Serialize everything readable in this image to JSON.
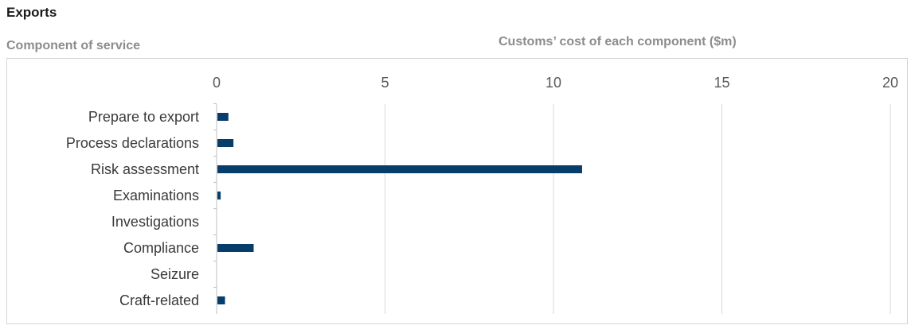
{
  "header": {
    "title": "Exports",
    "left_label": "Component of service",
    "right_label": "Customs’ cost of each component ($m)"
  },
  "chart_data": {
    "type": "bar",
    "orientation": "horizontal",
    "categories": [
      "Prepare to export",
      "Process declarations",
      "Risk assessment",
      "Examinations",
      "Investigations",
      "Compliance",
      "Seizure",
      "Craft-related"
    ],
    "values": [
      0.35,
      0.5,
      10.85,
      0.12,
      0,
      1.1,
      0,
      0.25
    ],
    "xlabel": "Customs’ cost of each component ($m)",
    "ylabel": "Component of service",
    "xlim": [
      0,
      20
    ],
    "xticks": [
      0,
      5,
      10,
      15,
      20
    ],
    "grid": true,
    "colors": {
      "bar": "#063d6b",
      "grid": "#d9d9d9",
      "axis": "#bfbfbf"
    }
  }
}
